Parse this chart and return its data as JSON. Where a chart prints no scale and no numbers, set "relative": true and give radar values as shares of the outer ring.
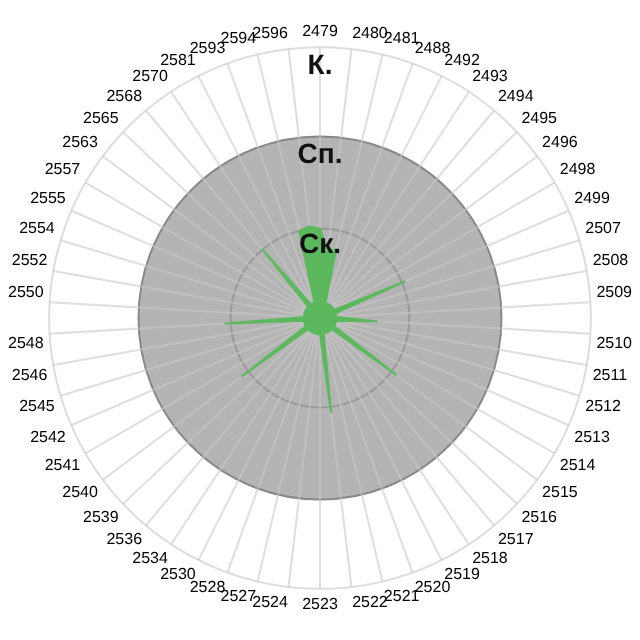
{
  "chart_data": {
    "type": "radar",
    "relative": true,
    "grid": true,
    "legend": false,
    "categories": [
      "2479",
      "2480",
      "2481",
      "2488",
      "2492",
      "2493",
      "2494",
      "2495",
      "2496",
      "2498",
      "2499",
      "2507",
      "2508",
      "2509",
      "2510",
      "2511",
      "2512",
      "2513",
      "2514",
      "2515",
      "2516",
      "2517",
      "2518",
      "2519",
      "2520",
      "2521",
      "2522",
      "2523",
      "2524",
      "2527",
      "2528",
      "2530",
      "2534",
      "2536",
      "2539",
      "2540",
      "2541",
      "2542",
      "2545",
      "2546",
      "2548",
      "2550",
      "2552",
      "2554",
      "2555",
      "2557",
      "2563",
      "2565",
      "2568",
      "2570",
      "2581",
      "2593",
      "2594",
      "2596"
    ],
    "series": [
      {
        "color": "#5cb85c",
        "values": [
          0.33,
          0.25,
          0.26,
          0.06,
          0.06,
          0.06,
          0.06,
          0.06,
          0.06,
          0.06,
          0.34,
          0.06,
          0.06,
          0.06,
          0.21,
          0.06,
          0.06,
          0.06,
          0.06,
          0.35,
          0.06,
          0.06,
          0.06,
          0.06,
          0.06,
          0.06,
          0.35,
          0.06,
          0.06,
          0.06,
          0.06,
          0.06,
          0.06,
          0.06,
          0.06,
          0.36,
          0.06,
          0.06,
          0.06,
          0.06,
          0.35,
          0.06,
          0.06,
          0.06,
          0.06,
          0.06,
          0.06,
          0.06,
          0.33,
          0.06,
          0.06,
          0.06,
          0.33,
          0.34
        ]
      }
    ],
    "annotations": [
      "К.",
      "Сп.",
      "Ск."
    ]
  }
}
